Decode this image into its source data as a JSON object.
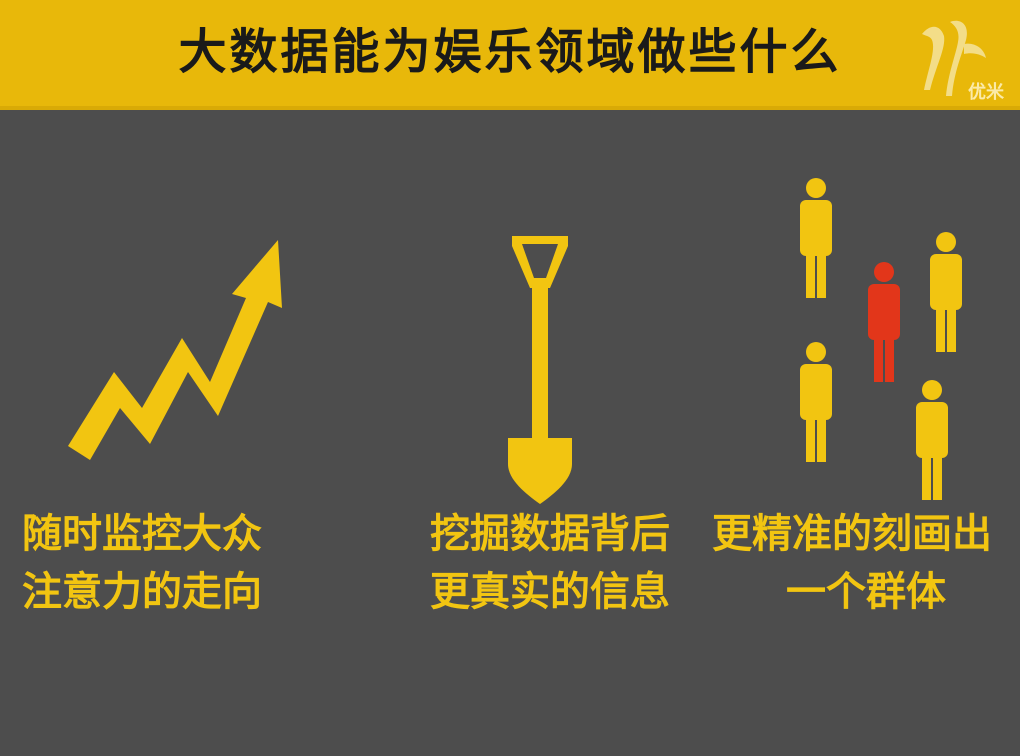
{
  "header": {
    "title": "大数据能为娱乐领域做些什么",
    "logo_text": "优米"
  },
  "colors": {
    "header_bg": "#e8b80a",
    "background": "#4d4d4d",
    "accent_yellow": "#f2c511",
    "highlight_red": "#e2361a"
  },
  "items": [
    {
      "icon": "trend-arrow-icon",
      "line1": "随时监控大众",
      "line2": "注意力的走向"
    },
    {
      "icon": "shovel-icon",
      "line1": "挖掘数据背后",
      "line2": "更真实的信息"
    },
    {
      "icon": "people-group-icon",
      "line1": "更精准的刻画出",
      "line2": "一个群体"
    }
  ]
}
